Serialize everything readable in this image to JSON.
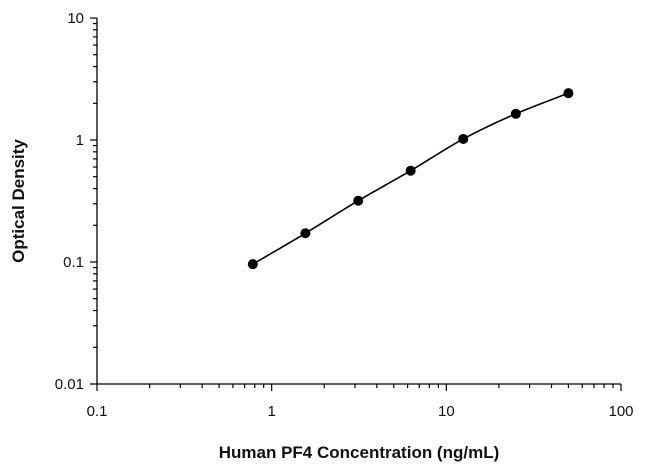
{
  "chart_data": {
    "type": "scatter",
    "xlabel": "Human PF4 Concentration (ng/mL)",
    "ylabel": "Optical Density",
    "xscale": "log",
    "yscale": "log",
    "xlim": [
      0.1,
      100
    ],
    "ylim": [
      0.01,
      10
    ],
    "x_ticks": [
      0.1,
      1,
      10,
      100
    ],
    "x_tick_labels": [
      "0.1",
      "1",
      "10",
      "100"
    ],
    "y_ticks": [
      0.01,
      0.1,
      1,
      10
    ],
    "y_tick_labels": [
      "0.01",
      "0.1",
      "1",
      "10"
    ],
    "grid": false,
    "series": [
      {
        "marker": "filled-circle",
        "line": "smooth-fit",
        "color": "#000000",
        "x": [
          0.78,
          1.56,
          3.13,
          6.25,
          12.5,
          25,
          50
        ],
        "y": [
          0.096,
          0.172,
          0.318,
          0.56,
          1.02,
          1.64,
          2.42
        ]
      }
    ]
  }
}
